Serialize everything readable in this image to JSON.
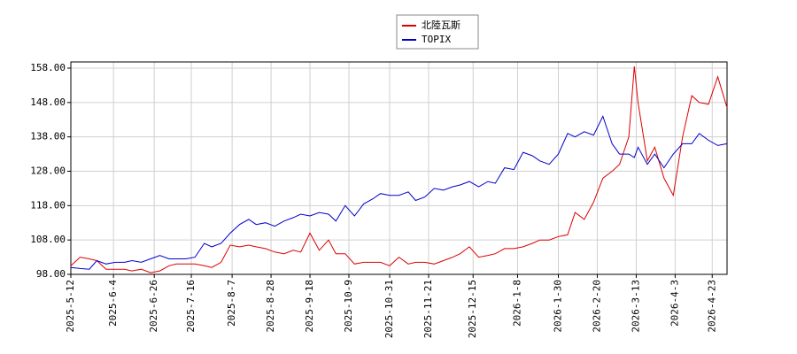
{
  "chart_data": {
    "type": "line",
    "x": [
      "2025-5-12",
      "2025-5-17",
      "2025-5-22",
      "2025-5-26",
      "2025-5-31",
      "2025-6-5",
      "2025-6-10",
      "2025-6-14",
      "2025-6-19",
      "2025-6-24",
      "2025-6-29",
      "2025-7-4",
      "2025-7-8",
      "2025-7-13",
      "2025-7-18",
      "2025-7-23",
      "2025-7-27",
      "2025-8-1",
      "2025-8-6",
      "2025-8-11",
      "2025-8-16",
      "2025-8-20",
      "2025-8-25",
      "2025-8-30",
      "2025-9-4",
      "2025-9-9",
      "2025-9-13",
      "2025-9-18",
      "2025-9-23",
      "2025-9-28",
      "2025-10-2",
      "2025-10-7",
      "2025-10-12",
      "2025-10-17",
      "2025-10-22",
      "2025-10-26",
      "2025-10-31",
      "2025-11-5",
      "2025-11-10",
      "2025-11-14",
      "2025-11-19",
      "2025-11-24",
      "2025-11-29",
      "2025-12-4",
      "2025-12-8",
      "2025-12-13",
      "2025-12-18",
      "2025-12-23",
      "2025-12-27",
      "2026-1-1",
      "2026-1-6",
      "2026-1-11",
      "2026-1-16",
      "2026-1-20",
      "2026-1-25",
      "2026-1-30",
      "2026-2-4",
      "2026-2-8",
      "2026-2-13",
      "2026-2-18",
      "2026-2-23",
      "2026-2-28",
      "2026-3-4",
      "2026-3-9",
      "2026-3-12",
      "2026-3-14",
      "2026-3-19",
      "2026-3-23",
      "2026-3-28",
      "2026-4-2",
      "2026-4-7",
      "2026-4-12",
      "2026-4-16",
      "2026-4-21",
      "2026-4-26",
      "2026-5-1"
    ],
    "series": [
      {
        "name": "北陸瓦斯",
        "color": "#dd0000",
        "values": [
          100.5,
          103,
          102.5,
          102,
          99.5,
          99.5,
          99.5,
          99,
          99.5,
          98.5,
          99,
          100.5,
          101,
          101,
          101,
          100.5,
          100,
          101.5,
          106.5,
          106,
          106.5,
          106,
          105.5,
          104.5,
          104,
          105,
          104.5,
          110,
          105,
          108,
          104,
          104,
          101,
          101.5,
          101.5,
          101.5,
          100.5,
          103,
          101,
          101.5,
          101.5,
          101,
          102,
          103,
          104,
          106,
          103,
          103.5,
          104,
          105.5,
          105.5,
          106,
          107,
          108,
          108,
          109,
          109.5,
          116,
          114,
          119,
          126,
          128,
          130,
          138,
          158.5,
          148,
          131,
          135,
          126,
          121,
          138,
          150,
          148,
          147.5,
          155.5,
          146.5
        ]
      },
      {
        "name": "TOPIX",
        "color": "#0000cc",
        "values": [
          100,
          99.7,
          99.5,
          102,
          101,
          101.5,
          101.5,
          102,
          101.5,
          102.5,
          103.5,
          102.5,
          102.5,
          102.5,
          103,
          107,
          106,
          107,
          110,
          112.5,
          114,
          112.5,
          113,
          112,
          113.5,
          114.5,
          115.5,
          115,
          116,
          115.5,
          113.5,
          118,
          115,
          118.5,
          120,
          121.5,
          121,
          121,
          122,
          119.5,
          120.5,
          123,
          122.5,
          123.5,
          124,
          125,
          123.5,
          125,
          124.5,
          129,
          128.5,
          133.5,
          132.5,
          131,
          130,
          133,
          139,
          138,
          139.5,
          138.5,
          144,
          136,
          133,
          133,
          132,
          135,
          130,
          133,
          129,
          133,
          136,
          136,
          139,
          137,
          135.5,
          136
        ]
      }
    ],
    "xlim": [
      "2025-5-12",
      "2026-5-1"
    ],
    "xticks": [
      "2025-5-12",
      "2025-6-4",
      "2025-6-26",
      "2025-7-16",
      "2025-8-7",
      "2025-8-28",
      "2025-9-18",
      "2025-10-9",
      "2025-10-31",
      "2025-11-21",
      "2025-12-15",
      "2026-1-8",
      "2026-1-30",
      "2026-2-20",
      "2026-3-13",
      "2026-4-3",
      "2026-4-23"
    ],
    "ylim": [
      98,
      159.8
    ],
    "yticks": [
      {
        "value": 98,
        "label": "98.00"
      },
      {
        "value": 108,
        "label": "108.00"
      },
      {
        "value": 118,
        "label": "118.00"
      },
      {
        "value": 128,
        "label": "128.00"
      },
      {
        "value": 138,
        "label": "138.00"
      },
      {
        "value": 148,
        "label": "148.00"
      },
      {
        "value": 158,
        "label": "158.00"
      }
    ],
    "grid": true
  }
}
